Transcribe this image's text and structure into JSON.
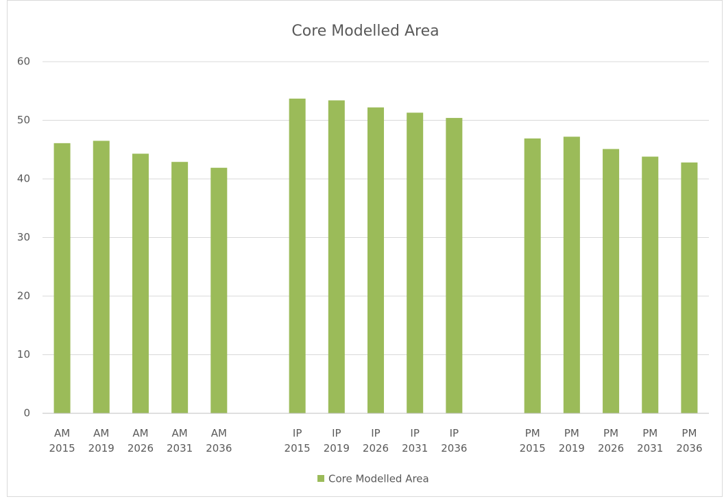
{
  "chart_data": {
    "type": "bar",
    "title": "Core Modelled Area",
    "categories": [
      "AM 2015",
      "AM 2019",
      "AM 2026",
      "AM 2031",
      "AM 2036",
      null,
      "IP 2015",
      "IP 2019",
      "IP 2026",
      "IP 2031",
      "IP 2036",
      null,
      "PM 2015",
      "PM 2019",
      "PM 2026",
      "PM 2031",
      "PM 2036"
    ],
    "series": [
      {
        "name": "Core Modelled Area",
        "color": "#9bbb59",
        "values": [
          46.1,
          46.5,
          44.3,
          42.9,
          41.9,
          null,
          53.7,
          53.4,
          52.2,
          51.3,
          50.4,
          null,
          46.9,
          47.2,
          45.1,
          43.8,
          42.8
        ]
      }
    ],
    "ylim": [
      0,
      60
    ],
    "yticks": [
      0,
      10,
      20,
      30,
      40,
      50,
      60
    ],
    "grid": true,
    "legend": "bottom"
  }
}
